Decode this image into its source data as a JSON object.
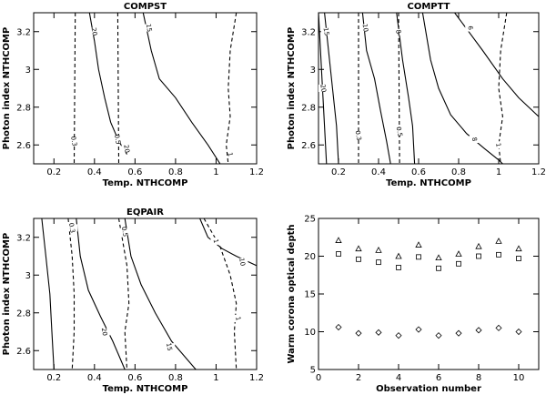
{
  "chart_data": [
    {
      "type": "contour",
      "title": "COMPST",
      "xlabel": "Temp. NTHCOMP",
      "ylabel": "Photon index NTHCOMP",
      "xlim": [
        0.1,
        1.2
      ],
      "ylim": [
        2.5,
        3.3
      ],
      "xticks": [
        0.2,
        0.4,
        0.6,
        0.8,
        1.0,
        1.2
      ],
      "xtick_labels": [
        "0.2",
        "0.4",
        "0.6",
        "0.8",
        "1",
        "1.2"
      ],
      "yticks": [
        2.6,
        2.8,
        3.0,
        3.2
      ],
      "ytick_labels": [
        "2.6",
        "2.8",
        "3",
        "3.2"
      ],
      "contours": [
        {
          "style": "solid",
          "label": "20",
          "label_at": [
            0.4,
            3.2
          ],
          "points": [
            [
              0.375,
              3.3
            ],
            [
              0.4,
              3.15
            ],
            [
              0.42,
              3.0
            ],
            [
              0.45,
              2.85
            ],
            [
              0.48,
              2.72
            ],
            [
              0.52,
              2.62
            ],
            [
              0.56,
              2.55
            ]
          ],
          "label2": "20",
          "label2_at": [
            0.56,
            2.58
          ]
        },
        {
          "style": "solid",
          "label": "15",
          "label_at": [
            0.67,
            3.22
          ],
          "points": [
            [
              0.64,
              3.3
            ],
            [
              0.68,
              3.1
            ],
            [
              0.72,
              2.95
            ],
            [
              0.8,
              2.85
            ],
            [
              0.88,
              2.72
            ],
            [
              0.96,
              2.6
            ],
            [
              1.02,
              2.5
            ]
          ],
          "label2": "1",
          "label2_at": [
            1.07,
            2.55
          ]
        },
        {
          "style": "dashed",
          "label": "0.3",
          "label_at": [
            0.3,
            2.62
          ],
          "points": [
            [
              0.305,
              3.3
            ],
            [
              0.3,
              2.5
            ]
          ]
        },
        {
          "style": "dashed",
          "label": "0.5",
          "label_at": [
            0.515,
            2.63
          ],
          "points": [
            [
              0.515,
              3.3
            ],
            [
              0.52,
              2.5
            ]
          ]
        },
        {
          "style": "dashed",
          "label": "",
          "label_at": [
            0,
            0
          ],
          "points": [
            [
              1.1,
              3.3
            ],
            [
              1.07,
              3.1
            ],
            [
              1.06,
              2.9
            ],
            [
              1.07,
              2.75
            ],
            [
              1.05,
              2.6
            ],
            [
              1.06,
              2.5
            ]
          ]
        }
      ]
    },
    {
      "type": "contour",
      "title": "COMPTT",
      "xlabel": "Temp. NTHCOMP",
      "ylabel": "Photon index NTHCOMP",
      "xlim": [
        0.1,
        1.2
      ],
      "ylim": [
        2.5,
        3.3
      ],
      "xticks": [
        0.2,
        0.4,
        0.6,
        0.8,
        1.0,
        1.2
      ],
      "xtick_labels": [
        "0.2",
        "0.4",
        "0.6",
        "0.8",
        "1",
        "1.2"
      ],
      "yticks": [
        2.6,
        2.8,
        3.0,
        3.2
      ],
      "ytick_labels": [
        "2.6",
        "2.8",
        "3",
        "3.2"
      ],
      "contours": [
        {
          "style": "solid",
          "label": "15",
          "label_at": [
            0.14,
            3.2
          ],
          "points": [
            [
              0.13,
              3.3
            ],
            [
              0.15,
              3.1
            ],
            [
              0.17,
              2.9
            ],
            [
              0.19,
              2.7
            ],
            [
              0.2,
              2.5
            ]
          ],
          "label2": "",
          "label2_at": [
            0,
            0
          ]
        },
        {
          "style": "solid",
          "label": "10",
          "label_at": [
            0.335,
            3.22
          ],
          "points": [
            [
              0.32,
              3.3
            ],
            [
              0.34,
              3.1
            ],
            [
              0.38,
              2.95
            ],
            [
              0.41,
              2.78
            ],
            [
              0.44,
              2.62
            ],
            [
              0.46,
              2.5
            ]
          ],
          "label2": "",
          "label2_at": [
            0,
            0
          ]
        },
        {
          "style": "solid",
          "label": "8",
          "label_at": [
            0.5,
            3.2
          ],
          "points": [
            [
              0.49,
              3.3
            ],
            [
              0.52,
              3.05
            ],
            [
              0.55,
              2.85
            ],
            [
              0.57,
              2.7
            ],
            [
              0.58,
              2.5
            ]
          ],
          "label2": "",
          "label2_at": [
            0,
            0
          ]
        },
        {
          "style": "solid",
          "label": "6",
          "label_at": [
            0.86,
            3.22
          ],
          "points": [
            [
              0.78,
              3.3
            ],
            [
              0.85,
              3.2
            ],
            [
              0.92,
              3.1
            ],
            [
              1.02,
              2.95
            ],
            [
              1.1,
              2.85
            ],
            [
              1.2,
              2.75
            ]
          ],
          "label2": "",
          "label2_at": [
            0,
            0
          ]
        },
        {
          "style": "solid",
          "label": "8",
          "label_at": [
            0.88,
            2.63
          ],
          "points": [
            [
              0.62,
              3.3
            ],
            [
              0.66,
              3.05
            ],
            [
              0.7,
              2.9
            ],
            [
              0.76,
              2.76
            ],
            [
              0.84,
              2.66
            ],
            [
              0.93,
              2.58
            ],
            [
              1.0,
              2.52
            ],
            [
              1.02,
              2.5
            ]
          ],
          "label2": "",
          "label2_at": [
            0,
            0
          ]
        },
        {
          "style": "solid",
          "label": "20",
          "label_at": [
            0.125,
            2.9
          ],
          "points": [
            [
              0.1,
              3.3
            ],
            [
              0.11,
              3.1
            ],
            [
              0.12,
              2.9
            ],
            [
              0.13,
              2.7
            ],
            [
              0.14,
              2.5
            ]
          ],
          "label2": "",
          "label2_at": [
            0,
            0
          ]
        },
        {
          "style": "dashed",
          "label": "0.3",
          "label_at": [
            0.3,
            2.65
          ],
          "points": [
            [
              0.3,
              3.3
            ],
            [
              0.3,
              2.5
            ]
          ],
          "label2": "",
          "label2_at": [
            0,
            0
          ]
        },
        {
          "style": "dashed",
          "label": "0.5",
          "label_at": [
            0.505,
            2.67
          ],
          "points": [
            [
              0.5,
              3.3
            ],
            [
              0.505,
              2.5
            ]
          ],
          "label2": "",
          "label2_at": [
            0,
            0
          ]
        },
        {
          "style": "dashed",
          "label": "1",
          "label_at": [
            1.0,
            2.6
          ],
          "points": [
            [
              1.04,
              3.3
            ],
            [
              1.01,
              3.1
            ],
            [
              1.0,
              2.9
            ],
            [
              1.02,
              2.75
            ],
            [
              1.0,
              2.6
            ],
            [
              1.01,
              2.5
            ]
          ],
          "label2": "",
          "label2_at": [
            0,
            0
          ]
        }
      ]
    },
    {
      "type": "contour",
      "title": "EQPAIR",
      "xlabel": "Temp. NTHCOMP",
      "ylabel": "Photon index NTHCOMP",
      "xlim": [
        0.1,
        1.2
      ],
      "ylim": [
        2.5,
        3.3
      ],
      "xticks": [
        0.2,
        0.4,
        0.6,
        0.8,
        1.0,
        1.2
      ],
      "xtick_labels": [
        "0.2",
        "0.4",
        "0.6",
        "0.8",
        "1",
        "1.2"
      ],
      "yticks": [
        2.6,
        2.8,
        3.0,
        3.2
      ],
      "ytick_labels": [
        "2.6",
        "2.8",
        "3",
        "3.2"
      ],
      "contours": [
        {
          "style": "solid",
          "label": "20",
          "label_at": [
            0.45,
            2.7
          ],
          "points": [
            [
              0.31,
              3.3
            ],
            [
              0.33,
              3.1
            ],
            [
              0.37,
              2.92
            ],
            [
              0.43,
              2.78
            ],
            [
              0.49,
              2.65
            ],
            [
              0.53,
              2.55
            ],
            [
              0.55,
              2.5
            ]
          ],
          "label2": "",
          "label2_at": [
            0,
            0
          ]
        },
        {
          "style": "solid",
          "label": "15",
          "label_at": [
            0.77,
            2.62
          ],
          "points": [
            [
              0.55,
              3.3
            ],
            [
              0.58,
              3.1
            ],
            [
              0.63,
              2.95
            ],
            [
              0.7,
              2.8
            ],
            [
              0.78,
              2.65
            ],
            [
              0.86,
              2.55
            ],
            [
              0.9,
              2.5
            ]
          ],
          "label2": "",
          "label2_at": [
            0,
            0
          ]
        },
        {
          "style": "solid",
          "label": "10",
          "label_at": [
            1.13,
            3.07
          ],
          "points": [
            [
              0.92,
              3.3
            ],
            [
              0.96,
              3.2
            ],
            [
              1.03,
              3.14
            ],
            [
              1.1,
              3.1
            ],
            [
              1.2,
              3.05
            ]
          ],
          "label2": "",
          "label2_at": [
            0,
            0
          ]
        },
        {
          "style": "solid",
          "label": "",
          "label_at": [
            0,
            0
          ],
          "points": [
            [
              0.14,
              3.3
            ],
            [
              0.16,
              3.1
            ],
            [
              0.18,
              2.9
            ],
            [
              0.19,
              2.7
            ],
            [
              0.2,
              2.5
            ]
          ],
          "label2": "",
          "label2_at": [
            0,
            0
          ]
        },
        {
          "style": "dashed",
          "label": "0.3",
          "label_at": [
            0.29,
            3.25
          ],
          "points": [
            [
              0.27,
              3.3
            ],
            [
              0.29,
              3.1
            ],
            [
              0.3,
              2.9
            ],
            [
              0.3,
              2.7
            ],
            [
              0.29,
              2.5
            ]
          ],
          "label2": "",
          "label2_at": [
            0,
            0
          ]
        },
        {
          "style": "dashed",
          "label": "0.5",
          "label_at": [
            0.55,
            3.23
          ],
          "points": [
            [
              0.52,
              3.3
            ],
            [
              0.56,
              3.05
            ],
            [
              0.57,
              2.85
            ],
            [
              0.55,
              2.7
            ],
            [
              0.56,
              2.5
            ]
          ],
          "label2": "",
          "label2_at": [
            0,
            0
          ]
        },
        {
          "style": "dashed",
          "label": "1",
          "label_at": [
            1.0,
            3.18
          ],
          "points": [
            [
              0.94,
              3.3
            ],
            [
              1.02,
              3.15
            ],
            [
              1.07,
              3.0
            ],
            [
              1.1,
              2.85
            ],
            [
              1.09,
              2.7
            ],
            [
              1.1,
              2.5
            ]
          ],
          "label2": "1",
          "label2_at": [
            1.11,
            2.77
          ]
        }
      ]
    },
    {
      "type": "scatter",
      "title": "",
      "xlabel": "Observation number",
      "ylabel": "Warm corona optical depth",
      "xlim": [
        0,
        11
      ],
      "ylim": [
        5,
        25
      ],
      "xticks": [
        0,
        2,
        4,
        6,
        8,
        10
      ],
      "xtick_labels": [
        "0",
        "2",
        "4",
        "6",
        "8",
        "10"
      ],
      "yticks": [
        5,
        10,
        15,
        20,
        25
      ],
      "ytick_labels": [
        "5",
        "10",
        "15",
        "20",
        "25"
      ],
      "series": [
        {
          "marker": "triangle",
          "x": [
            1,
            2,
            3,
            4,
            5,
            6,
            7,
            8,
            9,
            10
          ],
          "values": [
            22.1,
            21.0,
            20.8,
            20.0,
            21.5,
            19.8,
            20.3,
            21.3,
            22.0,
            21.0
          ]
        },
        {
          "marker": "square",
          "x": [
            1,
            2,
            3,
            4,
            5,
            6,
            7,
            8,
            9,
            10
          ],
          "values": [
            20.3,
            19.6,
            19.2,
            18.5,
            19.9,
            18.4,
            19.0,
            20.0,
            20.2,
            19.7
          ]
        },
        {
          "marker": "diamond",
          "x": [
            1,
            2,
            3,
            4,
            5,
            6,
            7,
            8,
            9,
            10
          ],
          "values": [
            10.6,
            9.8,
            9.9,
            9.5,
            10.3,
            9.5,
            9.8,
            10.2,
            10.5,
            10.0
          ]
        }
      ]
    }
  ]
}
